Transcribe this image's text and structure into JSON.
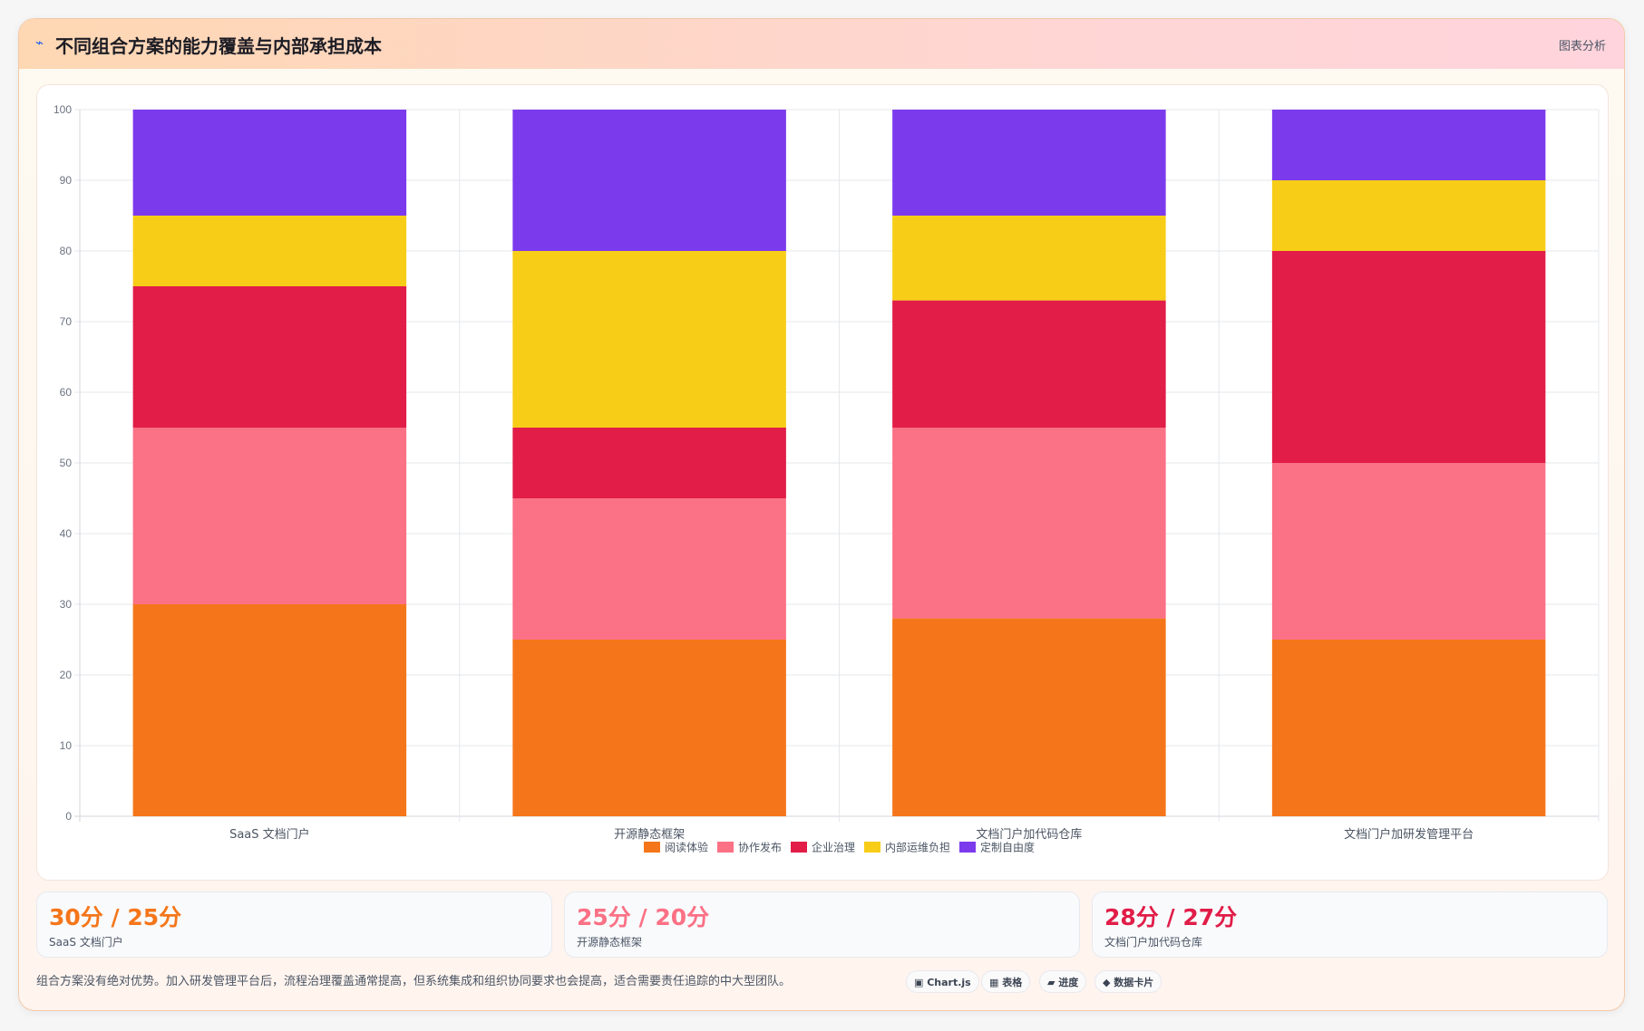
{
  "header": {
    "icon": "⌁",
    "title": "不同组合方案的能力覆盖与内部承担成本",
    "link": "图表分析"
  },
  "chart_data": {
    "type": "bar",
    "stacked": true,
    "categories": [
      "SaaS 文档门户",
      "开源静态框架",
      "文档门户加代码仓库",
      "文档门户加研发管理平台"
    ],
    "series": [
      {
        "name": "阅读体验",
        "color": "#f5761a",
        "values": [
          30,
          25,
          28,
          25
        ]
      },
      {
        "name": "协作发布",
        "color": "#fb7185",
        "values": [
          25,
          20,
          27,
          25
        ]
      },
      {
        "name": "企业治理",
        "color": "#e11d48",
        "values": [
          20,
          10,
          18,
          30
        ]
      },
      {
        "name": "内部运维负担",
        "color": "#f7cd18",
        "values": [
          10,
          25,
          12,
          10
        ]
      },
      {
        "name": "定制自由度",
        "color": "#7c3aed",
        "values": [
          15,
          20,
          15,
          10
        ]
      }
    ],
    "ylim": [
      0,
      100
    ],
    "yticks": [
      0,
      10,
      20,
      30,
      40,
      50,
      60,
      70,
      80,
      90,
      100
    ],
    "grid": true,
    "legend": "bottom"
  },
  "stats": [
    {
      "value": "30分 / 25分",
      "label": "SaaS 文档门户",
      "color": "#f5761a"
    },
    {
      "value": "25分 / 20分",
      "label": "开源静态框架",
      "color": "#fb7185"
    },
    {
      "value": "28分 / 27分",
      "label": "文档门户加代码仓库",
      "color": "#e11d48"
    }
  ],
  "footnote": "组合方案没有绝对优势。加入研发管理平台后，流程治理覆盖通常提高，但系统集成和组织协同要求也会提高，适合需要责任追踪的中大型团队。",
  "tags": [
    "▣ Chart.js",
    "▦ 表格",
    "▰ 进度",
    "◆ 数据卡片"
  ]
}
